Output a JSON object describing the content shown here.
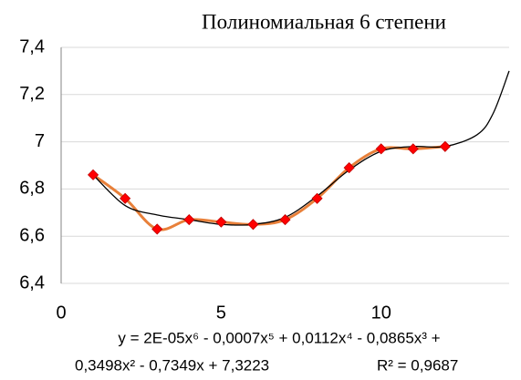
{
  "chart_data": {
    "type": "scatter",
    "title": "Полиномиальная  6 степени",
    "annotations": [
      "y = 2E-05x⁶ - 0,0007x⁵ + 0,0112x⁴ - 0,0865x³ +",
      "0,3498x² - 0,7349x + 7,3223",
      "R² = 0,9687"
    ],
    "xlim": [
      0,
      14
    ],
    "xticks": [
      0,
      5,
      10
    ],
    "ylim": [
      6.4,
      7.4
    ],
    "yticks": [
      {
        "value": 6.4,
        "label": "6,4"
      },
      {
        "value": 6.6,
        "label": "6,6"
      },
      {
        "value": 6.8,
        "label": "6,8"
      },
      7,
      {
        "value": 7.2,
        "label": "7,2"
      },
      {
        "value": 7.4,
        "label": "7,4"
      }
    ],
    "grid": true,
    "series": [
      {
        "color": "#e8803a",
        "marker_color": "#ff0000",
        "smooth": true,
        "x": [
          1,
          2,
          3,
          4,
          5,
          6,
          7,
          8,
          9,
          10,
          11,
          12
        ],
        "values": [
          6.86,
          6.76,
          6.63,
          6.67,
          6.66,
          6.65,
          6.67,
          6.76,
          6.89,
          6.97,
          6.97,
          6.98
        ]
      },
      {
        "color": "#000000",
        "smooth": true,
        "x": [
          1,
          2,
          3,
          4,
          5,
          6,
          7,
          8,
          9,
          10,
          11,
          12,
          13,
          13.5,
          14
        ],
        "values": [
          6.86,
          6.73,
          6.69,
          6.67,
          6.65,
          6.65,
          6.68,
          6.77,
          6.88,
          6.96,
          6.98,
          6.98,
          7.03,
          7.12,
          7.3
        ]
      }
    ]
  }
}
